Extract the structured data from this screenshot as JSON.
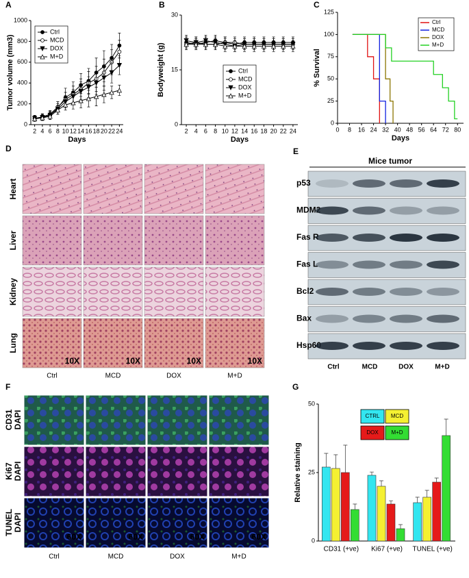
{
  "chart_data": [
    {
      "type": "line",
      "panel": "A",
      "xlabel": "Days",
      "ylabel": "Tumor volume (mm3)",
      "x": [
        2,
        4,
        6,
        8,
        10,
        12,
        14,
        16,
        18,
        20,
        22,
        24
      ],
      "xlim": [
        1,
        25
      ],
      "xticks": [
        2,
        4,
        6,
        8,
        10,
        12,
        14,
        16,
        18,
        20,
        22,
        24
      ],
      "ylim": [
        0,
        1000
      ],
      "yticks": [
        0,
        200,
        400,
        600,
        800,
        1000
      ],
      "legend": "upper left",
      "series": [
        {
          "name": "Ctrl",
          "color": "#000000",
          "marker": "circle-filled",
          "values": [
            60,
            70,
            90,
            160,
            260,
            310,
            380,
            420,
            500,
            560,
            640,
            760
          ],
          "errors": [
            30,
            30,
            40,
            60,
            90,
            100,
            110,
            120,
            140,
            150,
            130,
            120
          ]
        },
        {
          "name": "MCD",
          "color": "#000000",
          "marker": "circle-open",
          "values": [
            60,
            75,
            100,
            170,
            240,
            290,
            340,
            400,
            440,
            500,
            600,
            700
          ],
          "errors": [
            25,
            30,
            35,
            50,
            70,
            80,
            100,
            110,
            120,
            130,
            120,
            110
          ]
        },
        {
          "name": "DOX",
          "color": "#000000",
          "marker": "triangle-down-filled",
          "values": [
            60,
            70,
            90,
            150,
            220,
            270,
            320,
            360,
            400,
            450,
            500,
            570
          ],
          "errors": [
            25,
            25,
            30,
            50,
            60,
            70,
            90,
            100,
            110,
            120,
            100,
            90
          ]
        },
        {
          "name": "M+D",
          "color": "#000000",
          "marker": "triangle-up-open",
          "values": [
            55,
            65,
            80,
            140,
            190,
            210,
            230,
            250,
            270,
            290,
            310,
            330
          ],
          "errors": [
            20,
            25,
            30,
            40,
            50,
            60,
            70,
            80,
            90,
            80,
            60,
            50
          ]
        }
      ]
    },
    {
      "type": "line",
      "panel": "B",
      "xlabel": "Days",
      "ylabel": "Bodyweight (g)",
      "x": [
        2,
        4,
        6,
        8,
        10,
        12,
        14,
        16,
        18,
        20,
        22,
        24
      ],
      "xlim": [
        1,
        25
      ],
      "xticks": [
        2,
        4,
        6,
        8,
        10,
        12,
        14,
        16,
        18,
        20,
        22,
        24
      ],
      "ylim": [
        0,
        30
      ],
      "yticks": [
        0,
        15,
        30
      ],
      "legend": "center",
      "series": [
        {
          "name": "Ctrl",
          "color": "#000000",
          "marker": "circle-filled",
          "values": [
            22.5,
            22,
            22.5,
            23,
            22.5,
            22,
            22.5,
            22.5,
            22.5,
            22.5,
            22.5,
            22.5
          ],
          "errors": [
            1.5,
            1.5,
            1.5,
            1.5,
            1.5,
            1.5,
            1.5,
            1.5,
            1.5,
            1.5,
            1.5,
            1.5
          ]
        },
        {
          "name": "MCD",
          "color": "#000000",
          "marker": "circle-open",
          "values": [
            22,
            22.5,
            22,
            22,
            22.5,
            22.5,
            22,
            22,
            22,
            22,
            22,
            22
          ],
          "errors": [
            1.5,
            1.5,
            1.5,
            1.5,
            1.5,
            1.5,
            1.5,
            1.5,
            1.5,
            1.5,
            1.5,
            1.5
          ]
        },
        {
          "name": "DOX",
          "color": "#000000",
          "marker": "triangle-down-filled",
          "values": [
            23,
            22.5,
            23,
            22.5,
            22,
            21.5,
            22,
            22,
            22,
            22,
            22,
            22
          ],
          "errors": [
            1.5,
            1.5,
            1.5,
            1.5,
            1.5,
            1.5,
            1.5,
            1.5,
            1.5,
            1.5,
            1.5,
            1.5
          ]
        },
        {
          "name": "M+D",
          "color": "#000000",
          "marker": "triangle-up-open",
          "values": [
            22,
            22,
            22,
            22,
            21.5,
            21.5,
            21.5,
            21.5,
            21.5,
            21.5,
            21.5,
            21.5
          ],
          "errors": [
            1.5,
            1.5,
            1.5,
            1.5,
            1.5,
            1.5,
            1.5,
            1.5,
            1.5,
            1.5,
            1.5,
            1.5
          ]
        }
      ]
    },
    {
      "type": "step",
      "panel": "C",
      "xlabel": "Days",
      "ylabel": "% Survival",
      "xlim": [
        0,
        84
      ],
      "xticks": [
        0,
        8,
        16,
        24,
        32,
        40,
        48,
        56,
        64,
        72,
        80
      ],
      "ylim": [
        0,
        125
      ],
      "yticks": [
        0,
        25,
        50,
        75,
        100,
        125
      ],
      "legend": "upper right",
      "series": [
        {
          "name": "Ctrl",
          "color": "#e01010",
          "x": [
            10,
            20,
            24,
            28
          ],
          "values": [
            100,
            75,
            50,
            0
          ]
        },
        {
          "name": "MCD",
          "color": "#1020e0",
          "x": [
            10,
            28,
            32
          ],
          "values": [
            100,
            25,
            0
          ]
        },
        {
          "name": "DOX",
          "color": "#8b7500",
          "x": [
            10,
            32,
            35,
            37
          ],
          "values": [
            100,
            50,
            25,
            0
          ]
        },
        {
          "name": "M+D",
          "color": "#22d022",
          "x": [
            10,
            32,
            36,
            64,
            70,
            74,
            78,
            80
          ],
          "values": [
            100,
            85,
            70,
            55,
            40,
            25,
            5,
            5
          ]
        }
      ]
    },
    {
      "type": "bar",
      "panel": "G",
      "ylabel": "Relative staining",
      "categories": [
        "CD31 (+ve)",
        "Ki67 (+ve)",
        "TUNEL (+ve)"
      ],
      "ylim": [
        0,
        50
      ],
      "yticks": [
        0,
        25,
        50
      ],
      "legend": "upper center",
      "series": [
        {
          "name": "CTRL",
          "color": "#33e6f0",
          "values": [
            27,
            24,
            14
          ],
          "errors": [
            5,
            1.2,
            2
          ]
        },
        {
          "name": "MCD",
          "color": "#f5f032",
          "values": [
            26.5,
            20,
            16
          ],
          "errors": [
            5,
            2,
            2.5
          ]
        },
        {
          "name": "DOX",
          "color": "#e51a1a",
          "values": [
            25,
            13.5,
            21.5
          ],
          "errors": [
            10,
            1.2,
            1.5
          ]
        },
        {
          "name": "M+D",
          "color": "#33dd33",
          "values": [
            11.5,
            4.5,
            38.5
          ],
          "errors": [
            2,
            1.5,
            6
          ]
        }
      ]
    }
  ],
  "panels": {
    "D": {
      "label": "D",
      "rows": [
        "Heart",
        "Liver",
        "Kidney",
        "Lung"
      ],
      "columns": [
        "Ctrl",
        "MCD",
        "DOX",
        "M+D"
      ],
      "magnification": [
        "10X",
        "10X",
        "10X",
        "10X"
      ]
    },
    "E": {
      "label": "E",
      "title": "Mice tumor",
      "rows": [
        "p53",
        "MDM2",
        "Fas R",
        "Fas L",
        "Bcl2",
        "Bax",
        "Hsp60"
      ],
      "columns": [
        "Ctrl",
        "MCD",
        "DOX",
        "M+D"
      ]
    },
    "F": {
      "label": "F",
      "rows": [
        [
          "CD31",
          "DAPI"
        ],
        [
          "Ki67",
          "DAPI"
        ],
        [
          "TUNEL",
          "DAPI"
        ]
      ],
      "columns": [
        "Ctrl",
        "MCD",
        "DOX",
        "M+D"
      ],
      "magnification": [
        "60X",
        "60X",
        "60X",
        "60X"
      ]
    }
  }
}
